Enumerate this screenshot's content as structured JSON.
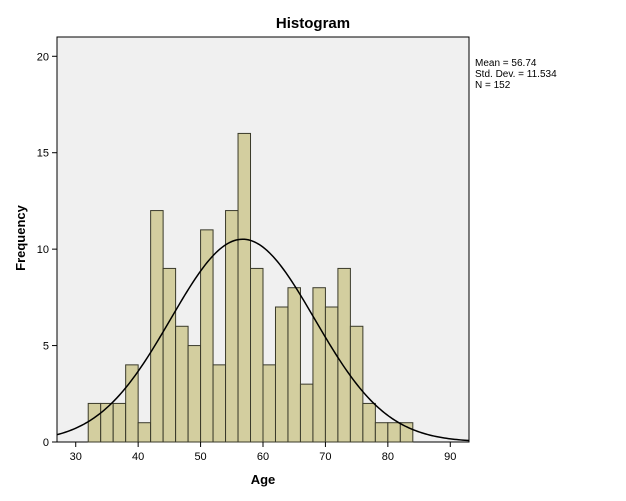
{
  "chart_data": {
    "type": "bar",
    "title": "Histogram",
    "xlabel": "Age",
    "ylabel": "Frequency",
    "xlim": [
      27,
      93
    ],
    "ylim": [
      0,
      21
    ],
    "x_ticks": [
      30,
      40,
      50,
      60,
      70,
      80,
      90
    ],
    "y_ticks": [
      0,
      5,
      10,
      15,
      20
    ],
    "bin_width": 2,
    "bins": [
      {
        "x0": 32,
        "x1": 34,
        "count": 2
      },
      {
        "x0": 34,
        "x1": 36,
        "count": 2
      },
      {
        "x0": 36,
        "x1": 38,
        "count": 2
      },
      {
        "x0": 38,
        "x1": 40,
        "count": 4
      },
      {
        "x0": 40,
        "x1": 42,
        "count": 1
      },
      {
        "x0": 42,
        "x1": 44,
        "count": 12
      },
      {
        "x0": 44,
        "x1": 46,
        "count": 9
      },
      {
        "x0": 46,
        "x1": 48,
        "count": 6
      },
      {
        "x0": 48,
        "x1": 50,
        "count": 5
      },
      {
        "x0": 50,
        "x1": 52,
        "count": 11
      },
      {
        "x0": 52,
        "x1": 54,
        "count": 4
      },
      {
        "x0": 54,
        "x1": 56,
        "count": 12
      },
      {
        "x0": 56,
        "x1": 58,
        "count": 16
      },
      {
        "x0": 58,
        "x1": 60,
        "count": 9
      },
      {
        "x0": 60,
        "x1": 62,
        "count": 4
      },
      {
        "x0": 62,
        "x1": 64,
        "count": 7
      },
      {
        "x0": 64,
        "x1": 66,
        "count": 8
      },
      {
        "x0": 66,
        "x1": 68,
        "count": 3
      },
      {
        "x0": 68,
        "x1": 70,
        "count": 8
      },
      {
        "x0": 70,
        "x1": 72,
        "count": 7
      },
      {
        "x0": 72,
        "x1": 74,
        "count": 9
      },
      {
        "x0": 74,
        "x1": 76,
        "count": 6
      },
      {
        "x0": 76,
        "x1": 78,
        "count": 2
      },
      {
        "x0": 78,
        "x1": 80,
        "count": 1
      },
      {
        "x0": 80,
        "x1": 82,
        "count": 1
      },
      {
        "x0": 82,
        "x1": 84,
        "count": 1
      }
    ],
    "normal_curve": {
      "mean": 56.74,
      "sd": 11.534,
      "n": 152
    },
    "stats": [
      "Mean = 56.74",
      "Std. Dev. = 11.534",
      "N = 152"
    ],
    "grid": false,
    "colors": {
      "bar_fill": "#d3ce9f",
      "bar_stroke": "#3a3a2a",
      "plot_bg": "#f0f0f0",
      "curve": "#000000"
    }
  }
}
